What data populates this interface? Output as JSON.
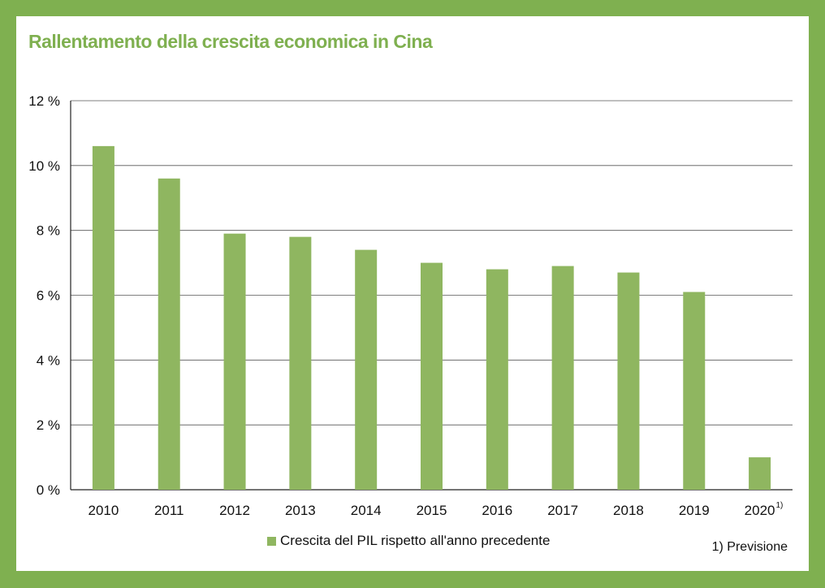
{
  "colors": {
    "frame": "#7fb050",
    "bar": "#8fb660",
    "title": "#7fb050",
    "grid": "#555555"
  },
  "chart_data": {
    "type": "bar",
    "title": "Rallentamento della crescita economica in Cina",
    "categories": [
      "2010",
      "2011",
      "2012",
      "2013",
      "2014",
      "2015",
      "2016",
      "2017",
      "2018",
      "2019",
      "2020"
    ],
    "category_marks": [
      "",
      "",
      "",
      "",
      "",
      "",
      "",
      "",
      "",
      "",
      "1)"
    ],
    "series": [
      {
        "name": "Crescita del PIL rispetto all'anno precedente",
        "values": [
          10.6,
          9.6,
          7.9,
          7.8,
          7.4,
          7.0,
          6.8,
          6.9,
          6.7,
          6.1,
          1.0
        ]
      }
    ],
    "yticks": [
      "0 %",
      "2 %",
      "4 %",
      "6 %",
      "8 %",
      "10 %",
      "12 %"
    ],
    "ylim": [
      0,
      12
    ],
    "grid": true,
    "legend": "bottom"
  },
  "footnote": "1) Previsione"
}
